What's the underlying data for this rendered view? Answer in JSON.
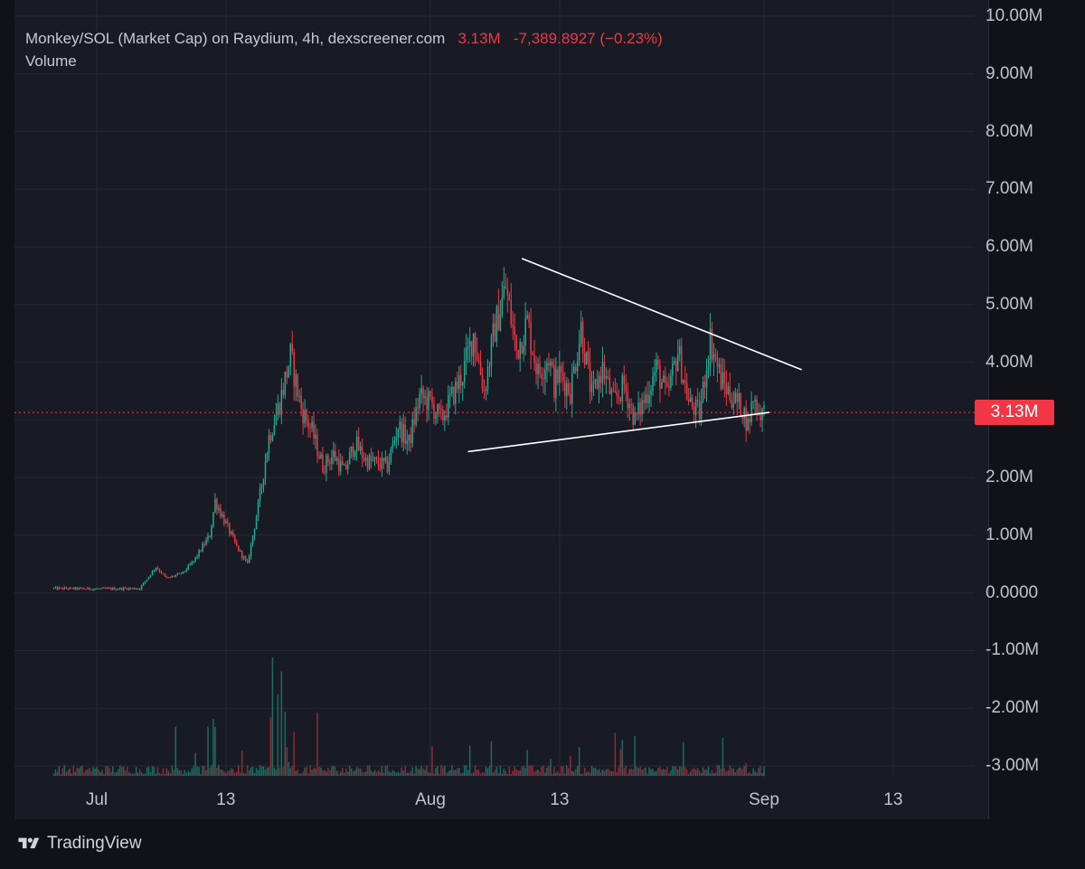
{
  "header": {
    "symbol": "Monkey/SOL (Market Cap) on Raydium, 4h, dexscreener.com",
    "last": "3.13M",
    "change": "-7,389.8927 (−0.23%)",
    "volume_label": "Volume"
  },
  "price_tag": "3.13M",
  "footer": {
    "brand": "TradingView"
  },
  "colors": {
    "up": "#22ab94",
    "down": "#f23645",
    "grid": "#262a35",
    "trendline": "#ffffff",
    "background": "#181b24"
  },
  "chart_data": {
    "type": "candlestick",
    "y_axis": {
      "ticks": [
        "10.00M",
        "9.00M",
        "8.00M",
        "7.00M",
        "6.00M",
        "5.00M",
        "4.00M",
        "3.00M",
        "2.00M",
        "1.00M",
        "0.0000",
        "-1.00M",
        "-2.00M",
        "-3.00M"
      ],
      "tick_values": [
        10,
        9,
        8,
        7,
        6,
        5,
        4,
        3,
        2,
        1,
        0,
        -1,
        -2,
        -3
      ],
      "unit": "M",
      "range": [
        -3.1,
        10.1
      ]
    },
    "x_axis": {
      "ticks": [
        "Jul",
        "13",
        "Aug",
        "13",
        "Sep",
        "13"
      ],
      "tick_days": [
        0,
        12,
        31,
        43,
        62,
        74
      ],
      "range_days": [
        -4.5,
        81.5
      ]
    },
    "last_price": 3.13,
    "volume_series": "Volume",
    "close_series": {
      "x_days": [
        -4,
        0,
        4,
        5.5,
        6.5,
        8,
        9,
        10.5,
        11,
        12,
        13,
        14,
        15,
        16,
        17,
        18,
        19,
        20,
        21,
        22,
        23,
        24,
        25,
        27,
        28,
        29,
        30,
        31,
        32,
        34,
        35,
        36,
        37,
        38,
        39,
        40,
        41,
        42,
        42.5,
        43,
        44,
        45,
        46,
        47,
        48,
        49,
        50,
        51,
        52,
        53,
        54,
        55,
        56,
        57,
        58,
        59,
        60,
        60.5,
        61,
        61.5,
        62
      ],
      "close": [
        0.08,
        0.07,
        0.08,
        0.45,
        0.25,
        0.35,
        0.55,
        1.0,
        1.6,
        1.2,
        0.8,
        0.5,
        1.5,
        2.7,
        3.3,
        4.1,
        3.2,
        2.8,
        2.2,
        2.4,
        2.1,
        2.6,
        2.3,
        2.2,
        2.9,
        2.6,
        3.4,
        3.3,
        3.0,
        3.8,
        4.5,
        3.5,
        4.6,
        5.3,
        4.2,
        4.7,
        3.8,
        4.1,
        3.6,
        3.8,
        3.5,
        4.6,
        3.4,
        3.9,
        3.3,
        3.6,
        3.0,
        3.4,
        3.9,
        3.4,
        4.2,
        3.3,
        3.1,
        4.4,
        3.7,
        3.4,
        3.2,
        2.9,
        3.4,
        3.15,
        3.13
      ]
    },
    "trendlines": [
      {
        "from": {
          "day": 39.5,
          "value": 5.8
        },
        "to": {
          "day": 65.5,
          "value": 3.87
        }
      },
      {
        "from": {
          "day": 34.5,
          "value": 2.45
        },
        "to": {
          "day": 62.5,
          "value": 3.13
        }
      }
    ]
  }
}
